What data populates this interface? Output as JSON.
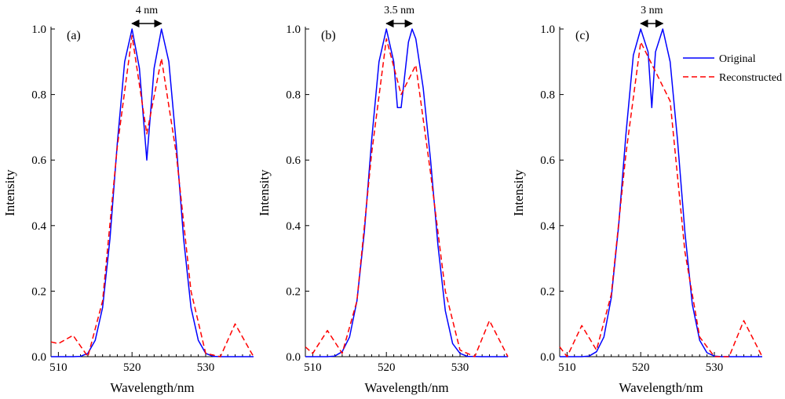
{
  "chart_data": [
    {
      "type": "line",
      "panel_label": "(a)",
      "separation_label": "4 nm",
      "separation_arrow_x": [
        520.0,
        524.0
      ],
      "xlabel": "Wavelength/nm",
      "ylabel": "Intensity",
      "xlim": [
        509,
        536.5
      ],
      "ylim": [
        0,
        1.0
      ],
      "xticks": [
        510,
        520,
        530
      ],
      "xtick_labels": [
        "510",
        "520",
        "530"
      ],
      "yticks": [
        0,
        0.2,
        0.4,
        0.6,
        0.8,
        1.0
      ],
      "ytick_labels": [
        "0.0",
        "0.2",
        "0.4",
        "0.6",
        "0.8",
        "1.0"
      ],
      "series": [
        {
          "name": "Original",
          "color": "#0000ff",
          "dash": "solid",
          "x": [
            509,
            512,
            513,
            514,
            515,
            516,
            517,
            518,
            519,
            520,
            521,
            522,
            523,
            524,
            525,
            526,
            527,
            528,
            529,
            530,
            531,
            532,
            533,
            536.5
          ],
          "y": [
            0,
            0,
            0.001,
            0.01,
            0.05,
            0.15,
            0.36,
            0.65,
            0.9,
            1.0,
            0.88,
            0.6,
            0.88,
            1.0,
            0.9,
            0.65,
            0.36,
            0.15,
            0.05,
            0.01,
            0.001,
            0,
            0,
            0
          ]
        },
        {
          "name": "Reconstructed",
          "color": "#ff0000",
          "dash": "dashed",
          "x": [
            509,
            510,
            512,
            514,
            516,
            518,
            520,
            522,
            524,
            526,
            528,
            530,
            532,
            534,
            536.5
          ],
          "y": [
            0.045,
            0.04,
            0.065,
            0.0,
            0.17,
            0.64,
            0.98,
            0.68,
            0.91,
            0.62,
            0.2,
            0.01,
            0.0,
            0.1,
            0.0
          ]
        }
      ]
    },
    {
      "type": "line",
      "panel_label": "(b)",
      "separation_label": "3.5 nm",
      "separation_arrow_x": [
        520.0,
        523.5
      ],
      "xlabel": "Wavelength/nm",
      "ylabel": "Intensity",
      "xlim": [
        509,
        536.5
      ],
      "ylim": [
        0,
        1.0
      ],
      "xticks": [
        510,
        520,
        530
      ],
      "xtick_labels": [
        "510",
        "520",
        "530"
      ],
      "yticks": [
        0,
        0.2,
        0.4,
        0.6,
        0.8,
        1.0
      ],
      "ytick_labels": [
        "0.0",
        "0.2",
        "0.4",
        "0.6",
        "0.8",
        "1.0"
      ],
      "series": [
        {
          "name": "Original",
          "color": "#0000ff",
          "dash": "solid",
          "x": [
            509,
            512,
            513,
            514,
            515,
            516,
            517,
            518,
            519,
            520,
            521,
            521.5,
            522,
            523,
            523.5,
            524,
            525,
            526,
            527,
            528,
            529,
            530,
            531,
            533,
            536.5
          ],
          "y": [
            0,
            0,
            0.002,
            0.015,
            0.06,
            0.17,
            0.38,
            0.66,
            0.9,
            1.0,
            0.9,
            0.76,
            0.76,
            0.96,
            1.0,
            0.97,
            0.82,
            0.6,
            0.34,
            0.14,
            0.04,
            0.01,
            0.001,
            0,
            0
          ]
        },
        {
          "name": "Reconstructed",
          "color": "#ff0000",
          "dash": "dashed",
          "x": [
            509,
            510,
            512,
            514,
            516,
            518,
            520,
            522,
            524,
            526,
            528,
            530,
            532,
            534,
            536.5
          ],
          "y": [
            0.03,
            0.01,
            0.08,
            0.01,
            0.17,
            0.62,
            0.97,
            0.8,
            0.89,
            0.56,
            0.2,
            0.02,
            0.0,
            0.11,
            0.0
          ]
        }
      ]
    },
    {
      "type": "line",
      "panel_label": "(c)",
      "separation_label": "3 nm",
      "separation_arrow_x": [
        520.0,
        523.0
      ],
      "xlabel": "Wavelength/nm",
      "ylabel": "Intensity",
      "xlim": [
        509,
        536.5
      ],
      "ylim": [
        0,
        1.0
      ],
      "xticks": [
        510,
        520,
        530
      ],
      "xtick_labels": [
        "510",
        "520",
        "530"
      ],
      "yticks": [
        0,
        0.2,
        0.4,
        0.6,
        0.8,
        1.0
      ],
      "ytick_labels": [
        "0.0",
        "0.2",
        "0.4",
        "0.6",
        "0.8",
        "1.0"
      ],
      "legend": {
        "placement": "top-right",
        "entries": [
          "Original",
          "Reconstructed"
        ]
      },
      "series": [
        {
          "name": "Original",
          "color": "#0000ff",
          "dash": "solid",
          "x": [
            509,
            512,
            513,
            514,
            515,
            516,
            517,
            518,
            519,
            520,
            521,
            521.5,
            522,
            523,
            524,
            525,
            526,
            527,
            528,
            529,
            530,
            531,
            533,
            536.5
          ],
          "y": [
            0,
            0,
            0.002,
            0.015,
            0.06,
            0.18,
            0.4,
            0.68,
            0.92,
            1.0,
            0.93,
            0.76,
            0.93,
            1.0,
            0.9,
            0.66,
            0.38,
            0.16,
            0.05,
            0.012,
            0.002,
            0,
            0,
            0
          ]
        },
        {
          "name": "Reconstructed",
          "color": "#ff0000",
          "dash": "dashed",
          "x": [
            509,
            510,
            512,
            514,
            516,
            518,
            520,
            522,
            524,
            526,
            528,
            530,
            532,
            534,
            536.5
          ],
          "y": [
            0.03,
            0.0,
            0.095,
            0.02,
            0.19,
            0.62,
            0.96,
            0.87,
            0.78,
            0.32,
            0.06,
            0.0,
            0.0,
            0.11,
            0.0
          ]
        }
      ]
    }
  ]
}
